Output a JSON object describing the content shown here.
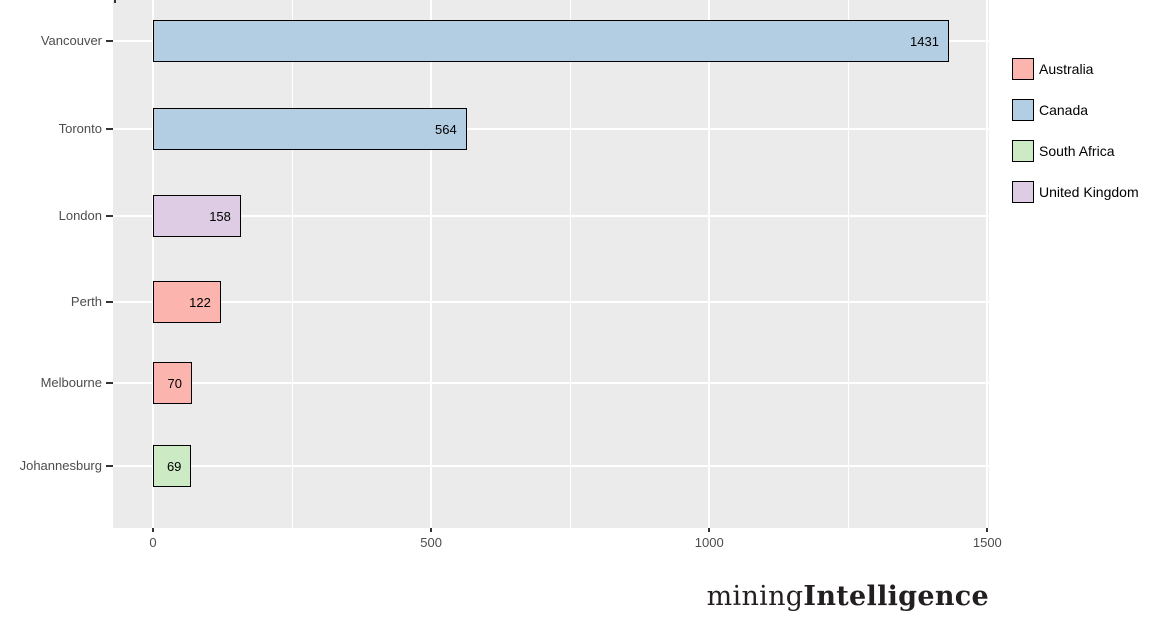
{
  "chart_data": {
    "type": "bar",
    "orientation": "horizontal",
    "title": "",
    "xlabel": "",
    "ylabel": "",
    "categories": [
      "Vancouver",
      "Toronto",
      "London",
      "Perth",
      "Melbourne",
      "Johannesburg"
    ],
    "values": [
      1431,
      564,
      158,
      122,
      70,
      69
    ],
    "bar_labels": [
      "1431",
      "564",
      "158",
      "122",
      "70",
      "69"
    ],
    "category_groups": [
      "Canada",
      "Canada",
      "United Kingdom",
      "Australia",
      "Australia",
      "South Africa"
    ],
    "xlim": [
      -72,
      1503
    ],
    "x_axis": {
      "tick_labels": [
        "0",
        "500",
        "1000",
        "1500"
      ],
      "tick_values": [
        0,
        500,
        1000,
        1500
      ],
      "minor_values": [
        250,
        750,
        1250
      ]
    },
    "legend": {
      "position": "right",
      "entries": [
        {
          "label": "Australia",
          "color": "#FBB4AE"
        },
        {
          "label": "Canada",
          "color": "#B3CDE3"
        },
        {
          "label": "South Africa",
          "color": "#CCEBC5"
        },
        {
          "label": "United Kingdom",
          "color": "#DECBE4"
        }
      ]
    },
    "grid": {
      "major_x": true,
      "minor_x": true,
      "major_y": true,
      "minor_y": false
    },
    "colors": {
      "panel_bg": "#EBEBEB",
      "grid": "#FFFFFF",
      "bar_border": "#000000",
      "axis_text": "#4D4D4D",
      "tick_mark": "#333333",
      "bar_value_text": "#000000",
      "legend_text": "#000000",
      "logo_text": "#231F20"
    }
  },
  "branding": {
    "logo_regular": "mining",
    "logo_bold": "Intelligence"
  }
}
